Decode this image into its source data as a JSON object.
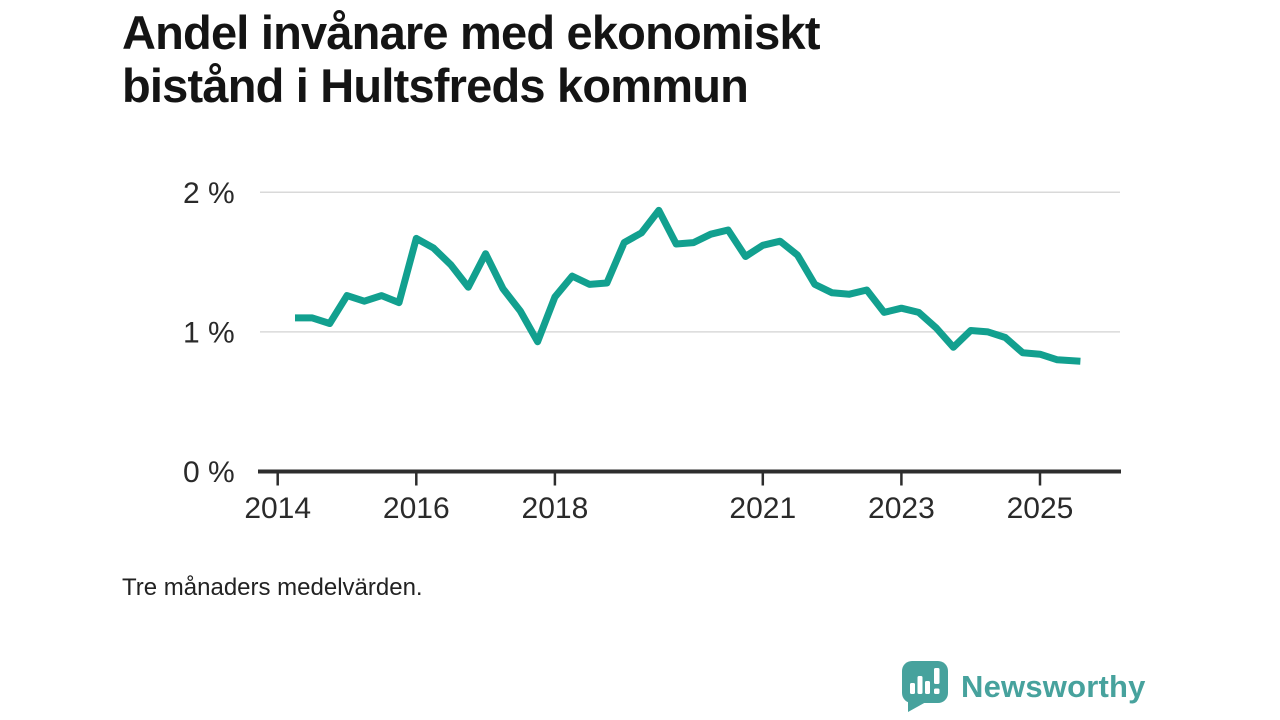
{
  "title": {
    "line1": "Andel invånare med ekonomiskt",
    "line2": "bistånd i Hultsfreds kommun"
  },
  "footnote": "Tre månaders medelvärden.",
  "branding": {
    "name": "Newsworthy",
    "icon": "newsworthy-speech-bubble-barchart-icon",
    "color": "#47a29d"
  },
  "colors": {
    "line": "#12a08f",
    "grid": "#d9d9d9",
    "axis": "#2d2d2d",
    "tick_text": "#2a2a2a"
  },
  "chart_data": {
    "type": "line",
    "title": "Andel invånare med ekonomiskt bistånd i Hultsfreds kommun",
    "subtitle": "Tre månaders medelvärden.",
    "unit": "%",
    "xlabel": "",
    "ylabel": "",
    "grid": "horizontal",
    "legend": "none",
    "xlim": [
      2013.75,
      2026.15
    ],
    "ylim": [
      0,
      2.15
    ],
    "y_ticks": [
      {
        "value": 0,
        "label": "0 %"
      },
      {
        "value": 1,
        "label": "1 %"
      },
      {
        "value": 2,
        "label": "2 %"
      }
    ],
    "x_ticks": [
      {
        "value": 2014,
        "label": "2014"
      },
      {
        "value": 2016,
        "label": "2016"
      },
      {
        "value": 2018,
        "label": "2018"
      },
      {
        "value": 2021,
        "label": "2021"
      },
      {
        "value": 2023,
        "label": "2023"
      },
      {
        "value": 2025,
        "label": "2025"
      }
    ],
    "series": [
      {
        "name": "Andel invånare med ekonomiskt bistånd",
        "dates": [
          "2014-04",
          "2014-07",
          "2014-10",
          "2015-01",
          "2015-04",
          "2015-07",
          "2015-10",
          "2016-01",
          "2016-04",
          "2016-07",
          "2016-10",
          "2017-01",
          "2017-04",
          "2017-07",
          "2017-10",
          "2018-01",
          "2018-04",
          "2018-07",
          "2018-10",
          "2019-01",
          "2019-04",
          "2019-07",
          "2019-10",
          "2020-01",
          "2020-04",
          "2020-07",
          "2020-10",
          "2021-01",
          "2021-04",
          "2021-07",
          "2021-10",
          "2022-01",
          "2022-04",
          "2022-07",
          "2022-10",
          "2023-01",
          "2023-04",
          "2023-07",
          "2023-10",
          "2024-01",
          "2024-04",
          "2024-07",
          "2024-10",
          "2025-01",
          "2025-04",
          "2025-08"
        ],
        "values": [
          1.1,
          1.1,
          1.06,
          1.26,
          1.22,
          1.26,
          1.21,
          1.67,
          1.6,
          1.48,
          1.32,
          1.56,
          1.31,
          1.15,
          0.93,
          1.25,
          1.4,
          1.34,
          1.35,
          1.64,
          1.71,
          1.87,
          1.63,
          1.64,
          1.7,
          1.73,
          1.54,
          1.62,
          1.65,
          1.55,
          1.34,
          1.28,
          1.27,
          1.3,
          1.14,
          1.17,
          1.14,
          1.03,
          0.89,
          1.01,
          1.0,
          0.96,
          0.85,
          0.84,
          0.8,
          0.79
        ]
      }
    ]
  }
}
